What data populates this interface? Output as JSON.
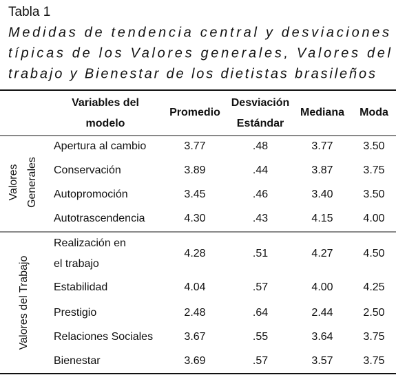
{
  "title": "Tabla 1",
  "caption": [
    "Medidas de tendencia central y desviaciones",
    "típicas de los Valores generales, Valores del",
    "trabajo y Bienestar de los dietistas brasileños"
  ],
  "table": {
    "header": [
      [
        "Variables del",
        "modelo"
      ],
      [
        "Promedio"
      ],
      [
        "Desviación",
        "Estándar"
      ],
      [
        "Mediana"
      ],
      [
        "Moda"
      ]
    ],
    "groups": [
      {
        "label": [
          "Valores",
          "Generales"
        ],
        "rows": [
          {
            "variable": [
              "Apertura al cambio"
            ],
            "values": [
              "3.77",
              ".48",
              "3.77",
              "3.50"
            ]
          },
          {
            "variable": [
              "Conservación"
            ],
            "values": [
              "3.89",
              ".44",
              "3.87",
              "3.75"
            ]
          },
          {
            "variable": [
              "Autopromoción"
            ],
            "values": [
              "3.45",
              ".46",
              "3.40",
              "3.50"
            ]
          },
          {
            "variable": [
              "Autotrascendencia"
            ],
            "values": [
              "4.30",
              ".43",
              "4.15",
              "4.00"
            ]
          }
        ]
      },
      {
        "label": [
          "Valores del Trabajo"
        ],
        "rows": [
          {
            "variable": [
              "Realización en",
              "el trabajo"
            ],
            "values": [
              "4.28",
              ".51",
              "4.27",
              "4.50"
            ]
          },
          {
            "variable": [
              "Estabilidad"
            ],
            "values": [
              "4.04",
              ".57",
              "4.00",
              "4.25"
            ]
          },
          {
            "variable": [
              "Prestigio"
            ],
            "values": [
              "2.48",
              ".64",
              "2.44",
              "2.50"
            ]
          },
          {
            "variable": [
              "Relaciones Sociales"
            ],
            "values": [
              "3.67",
              ".55",
              "3.64",
              "3.75"
            ]
          },
          {
            "variable": [
              "Bienestar"
            ],
            "values": [
              "3.69",
              ".57",
              "3.57",
              "3.75"
            ]
          }
        ]
      }
    ]
  }
}
